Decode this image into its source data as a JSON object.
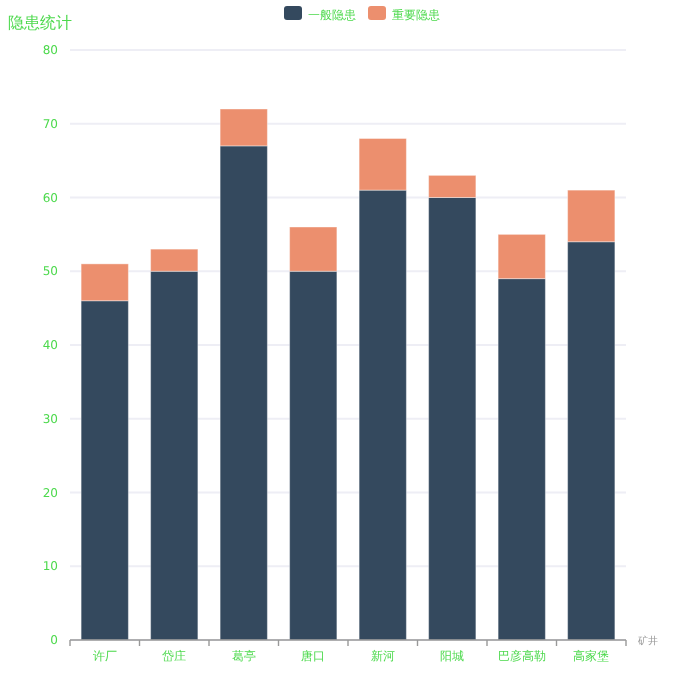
{
  "chart_data": {
    "type": "bar",
    "title": "隐患统计",
    "xlabel": "矿井",
    "stacked": true,
    "legend": "top",
    "grid": "y",
    "categories": [
      "许厂",
      "岱庄",
      "葛亭",
      "唐口",
      "新河",
      "阳城",
      "巴彦高勒",
      "高家堡"
    ],
    "series": [
      {
        "name": "一般隐患",
        "color": "#34495e",
        "values": [
          46,
          50,
          67,
          50,
          61,
          60,
          49,
          54
        ]
      },
      {
        "name": "重要隐患",
        "color": "#ec8f6e",
        "values": [
          5,
          3,
          5,
          6,
          7,
          3,
          6,
          7
        ]
      }
    ],
    "ylim": [
      0,
      80
    ],
    "yticks": [
      0,
      10,
      20,
      30,
      40,
      50,
      60,
      70,
      80
    ]
  }
}
